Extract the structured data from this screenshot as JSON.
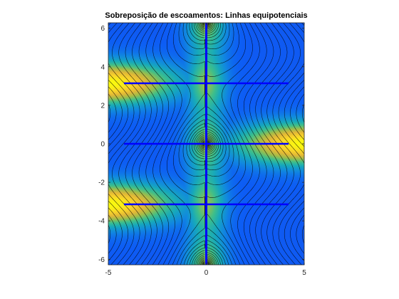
{
  "chart_data": {
    "type": "contour",
    "title": "Sobreposição de escoamentos: Linhas equipotenciais",
    "xlabel": "",
    "ylabel": "",
    "xlim": [
      -5,
      5
    ],
    "ylim": [
      -6.2832,
      6.2832
    ],
    "x_ticks": [
      -5,
      0,
      5
    ],
    "y_ticks": [
      -6,
      -4,
      -2,
      0,
      2,
      4,
      6
    ],
    "x_tick_labels": [
      "-5",
      "0",
      "5"
    ],
    "y_tick_labels": [
      "-6",
      "-4",
      "-2",
      "0",
      "2",
      "4",
      "6"
    ],
    "colormap": [
      "#3e26a8",
      "#0d5cf5",
      "#1188e0",
      "#17a9bb",
      "#3fbf8a",
      "#9fbd4a",
      "#e2b737",
      "#f9d42a",
      "#f9fb0e"
    ],
    "contour_line_color": "#000000",
    "branch_cut_color": "#0000ff",
    "vertical_cut_x": 0,
    "horizontal_cut_y": [
      -3.1416,
      0,
      3.1416
    ],
    "horizontal_cut_x_range": [
      -4.2,
      4.2
    ],
    "intensity_peaks": [
      {
        "x": -5,
        "y": -3.1416
      },
      {
        "x": -5,
        "y": 3.1416
      },
      {
        "x": 5,
        "y": 0
      }
    ],
    "grid": false,
    "legend": "none"
  }
}
